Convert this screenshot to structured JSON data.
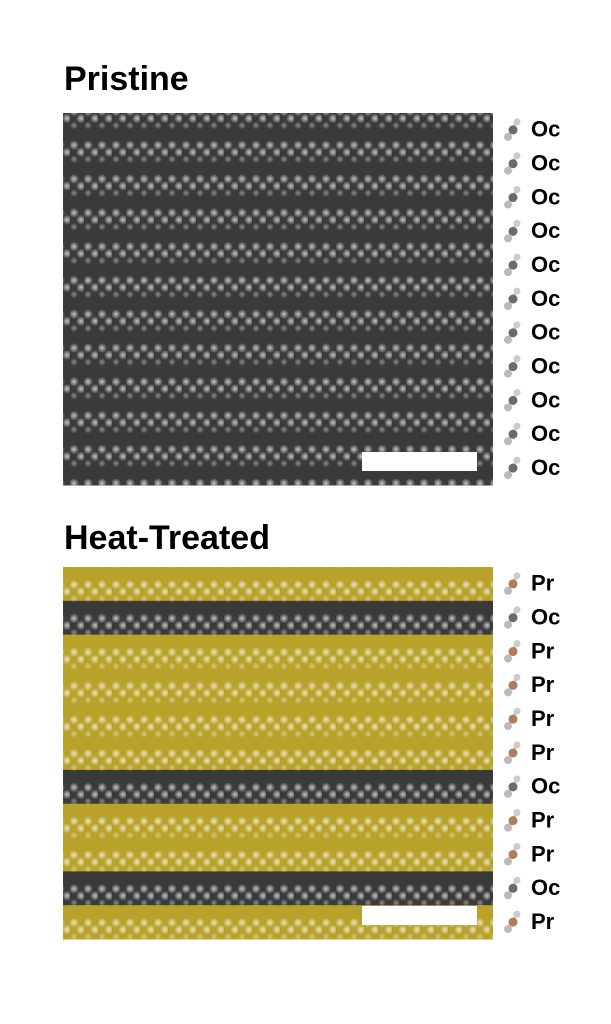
{
  "panels": [
    {
      "title": "Pristine",
      "layers": [
        {
          "label": "Oc",
          "color": "#3a3a3a",
          "atom_color": "#6b6b6b"
        },
        {
          "label": "Oc",
          "color": "#3a3a3a",
          "atom_color": "#6b6b6b"
        },
        {
          "label": "Oc",
          "color": "#3a3a3a",
          "atom_color": "#6b6b6b"
        },
        {
          "label": "Oc",
          "color": "#3a3a3a",
          "atom_color": "#6b6b6b"
        },
        {
          "label": "Oc",
          "color": "#3a3a3a",
          "atom_color": "#6b6b6b"
        },
        {
          "label": "Oc",
          "color": "#3a3a3a",
          "atom_color": "#6b6b6b"
        },
        {
          "label": "Oc",
          "color": "#3a3a3a",
          "atom_color": "#6b6b6b"
        },
        {
          "label": "Oc",
          "color": "#3a3a3a",
          "atom_color": "#6b6b6b"
        },
        {
          "label": "Oc",
          "color": "#3a3a3a",
          "atom_color": "#6b6b6b"
        },
        {
          "label": "Oc",
          "color": "#3a3a3a",
          "atom_color": "#6b6b6b"
        },
        {
          "label": "Oc",
          "color": "#3a3a3a",
          "atom_color": "#6b6b6b"
        }
      ]
    },
    {
      "title": "Heat-Treated",
      "layers": [
        {
          "label": "Pr",
          "color": "#b8a22a",
          "atom_color": "#b07d5a"
        },
        {
          "label": "Oc",
          "color": "#3a3a3a",
          "atom_color": "#6b6b6b"
        },
        {
          "label": "Pr",
          "color": "#b8a22a",
          "atom_color": "#b07d5a"
        },
        {
          "label": "Pr",
          "color": "#b8a22a",
          "atom_color": "#b07d5a"
        },
        {
          "label": "Pr",
          "color": "#b8a22a",
          "atom_color": "#b07d5a"
        },
        {
          "label": "Pr",
          "color": "#b8a22a",
          "atom_color": "#b07d5a"
        },
        {
          "label": "Oc",
          "color": "#3a3a3a",
          "atom_color": "#6b6b6b"
        },
        {
          "label": "Pr",
          "color": "#b8a22a",
          "atom_color": "#b07d5a"
        },
        {
          "label": "Pr",
          "color": "#b8a22a",
          "atom_color": "#b07d5a"
        },
        {
          "label": "Oc",
          "color": "#3a3a3a",
          "atom_color": "#6b6b6b"
        },
        {
          "label": "Pr",
          "color": "#b8a22a",
          "atom_color": "#b07d5a"
        }
      ]
    }
  ]
}
